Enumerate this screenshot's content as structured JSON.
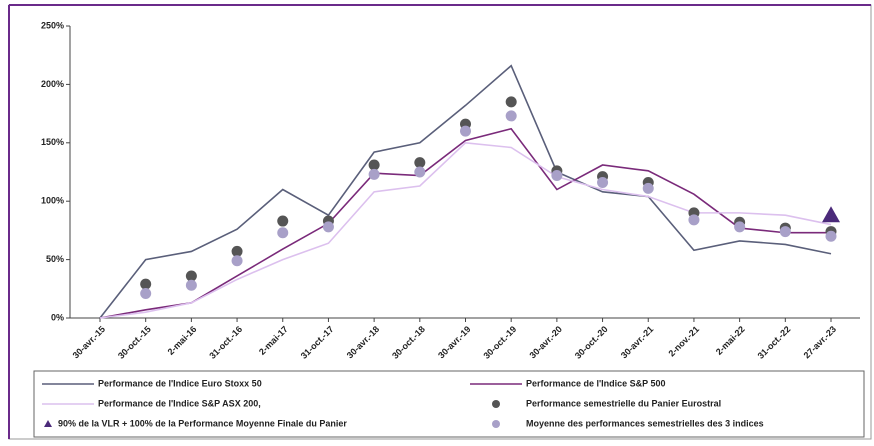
{
  "chart_data": {
    "type": "line",
    "categories": [
      "30-avr.-15",
      "30-oct.-15",
      "2-mai-16",
      "31-oct.-16",
      "2-mai-17",
      "31-oct.-17",
      "30-avr.-18",
      "30-oct.-18",
      "30-avr.-19",
      "30-oct.-19",
      "30-avr.-20",
      "30-oct.-20",
      "30-avr.-21",
      "2-nov.-21",
      "2-mai-22",
      "31-oct.-22",
      "27-avr.-23"
    ],
    "ylim": [
      0,
      250
    ],
    "yticks": [
      {
        "value": 0,
        "label": "0%"
      },
      {
        "value": 50,
        "label": "50%"
      },
      {
        "value": 100,
        "label": "100%"
      },
      {
        "value": 150,
        "label": "150%"
      },
      {
        "value": 200,
        "label": "200%"
      },
      {
        "value": 250,
        "label": "250%"
      }
    ],
    "series": [
      {
        "name": "Performance de l'Indice Euro Stoxx 50",
        "color": "#5a5f7a",
        "kind": "line",
        "values": [
          0,
          50,
          57,
          76,
          110,
          88,
          142,
          150,
          182,
          216,
          125,
          108,
          104,
          58,
          66,
          63,
          55
        ]
      },
      {
        "name": "Performance de l'Indice S&P 500",
        "color": "#7a2a7a",
        "kind": "line",
        "values": [
          0,
          7,
          13,
          36,
          59,
          81,
          124,
          122,
          152,
          162,
          110,
          131,
          126,
          106,
          77,
          73,
          73
        ]
      },
      {
        "name": "Performance de l'Indice S&P ASX 200,",
        "color": "#dcc0ee",
        "kind": "line",
        "values": [
          0,
          5,
          13,
          33,
          50,
          64,
          108,
          113,
          150,
          146,
          121,
          110,
          104,
          90,
          90,
          88,
          80
        ]
      },
      {
        "name": "Performance semestrielle du Panier Eurostral",
        "color": "#555555",
        "kind": "dot",
        "values": [
          null,
          29,
          36,
          57,
          83,
          83,
          131,
          133,
          166,
          185,
          126,
          121,
          116,
          90,
          82,
          77,
          74
        ]
      },
      {
        "name": "90% de la VLR + 100% de la Performance Moyenne Finale du Panier",
        "color": "#4b2a7a",
        "kind": "triangle",
        "values": [
          null,
          null,
          null,
          null,
          null,
          null,
          null,
          null,
          null,
          null,
          null,
          null,
          null,
          null,
          null,
          null,
          88
        ]
      },
      {
        "name": "Moyenne des performances semestrielles des 3 indices",
        "color": "#a8a0c8",
        "kind": "dot",
        "values": [
          null,
          21,
          28,
          49,
          73,
          78,
          123,
          125,
          160,
          173,
          122,
          116,
          111,
          84,
          78,
          74,
          70
        ]
      }
    ]
  }
}
